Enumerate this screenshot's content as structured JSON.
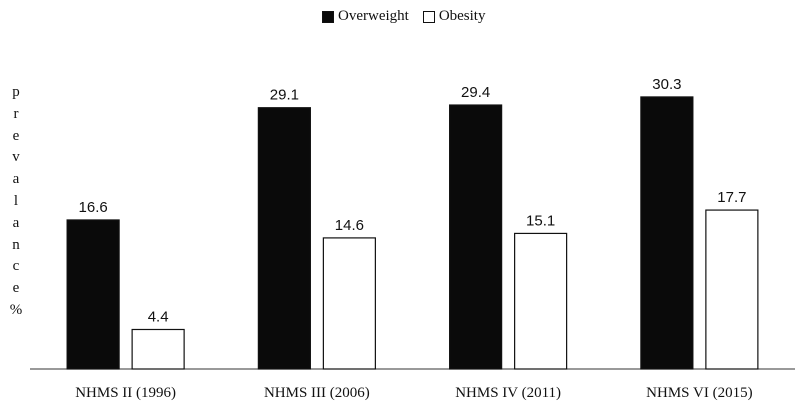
{
  "chart_data": {
    "type": "bar",
    "categories": [
      "NHMS II (1996)",
      "NHMS III (2006)",
      "NHMS IV (2011)",
      "NHMS VI (2015)"
    ],
    "series": [
      {
        "name": "Overweight",
        "values": [
          16.6,
          29.1,
          29.4,
          30.3
        ],
        "color": "#0a0a0a"
      },
      {
        "name": "Obesity",
        "values": [
          4.4,
          14.6,
          15.1,
          17.7
        ],
        "color": "#ffffff"
      }
    ],
    "ylabel": "prevalance%",
    "ylim": [
      0,
      33.3
    ],
    "grid": false,
    "legend": "top-center"
  }
}
